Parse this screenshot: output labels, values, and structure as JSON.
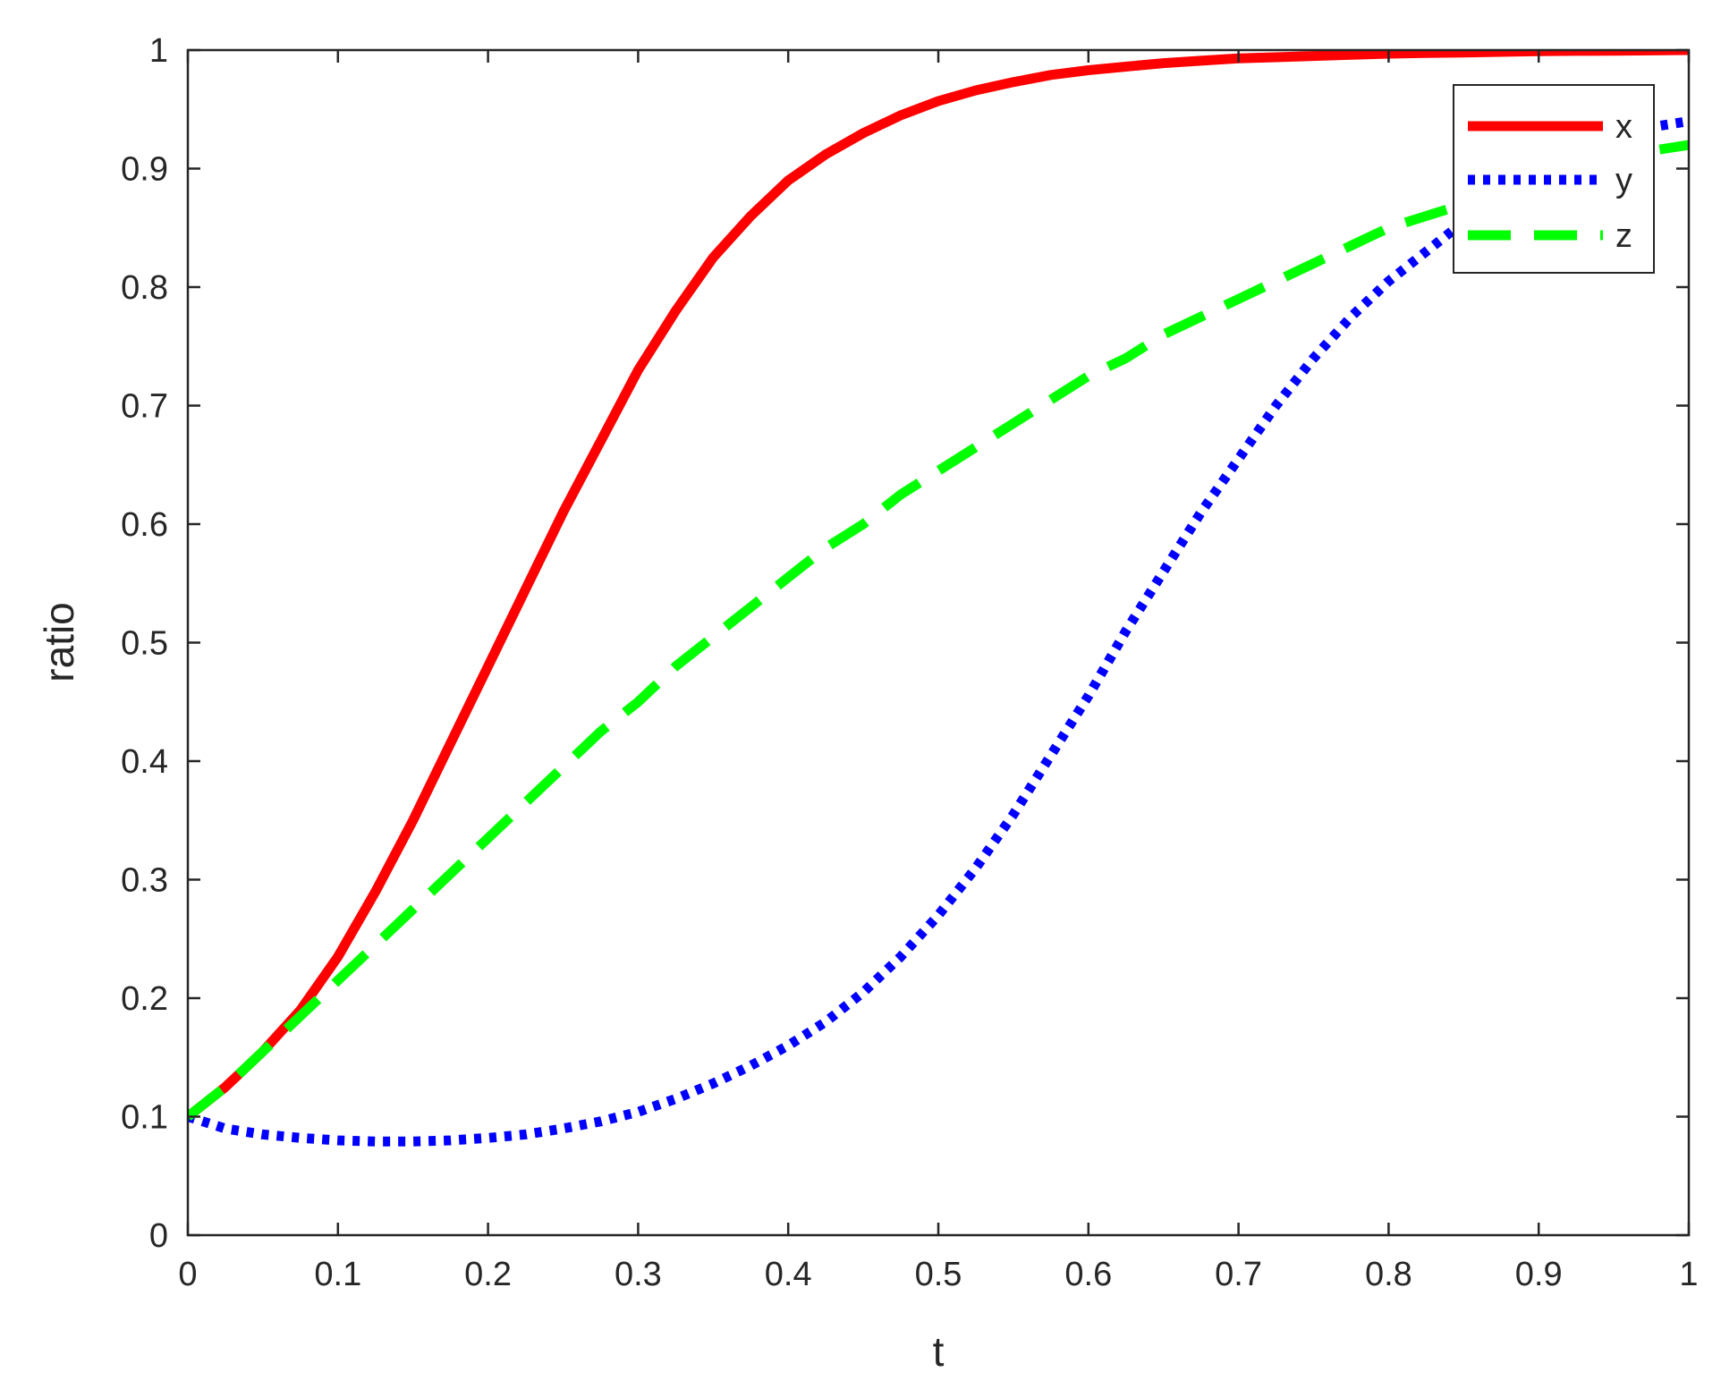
{
  "chart_data": {
    "type": "line",
    "title": "",
    "xlabel": "t",
    "ylabel": "ratio",
    "xlim": [
      0,
      1
    ],
    "ylim": [
      0,
      1
    ],
    "xticks": [
      0,
      0.1,
      0.2,
      0.3,
      0.4,
      0.5,
      0.6,
      0.7,
      0.8,
      0.9,
      1
    ],
    "yticks": [
      0,
      0.1,
      0.2,
      0.3,
      0.4,
      0.5,
      0.6,
      0.7,
      0.8,
      0.9,
      1
    ],
    "xtick_labels": [
      "0",
      "0.1",
      "0.2",
      "0.3",
      "0.4",
      "0.5",
      "0.6",
      "0.7",
      "0.8",
      "0.9",
      "1"
    ],
    "ytick_labels": [
      "0",
      "0.1",
      "0.2",
      "0.3",
      "0.4",
      "0.5",
      "0.6",
      "0.7",
      "0.8",
      "0.9",
      "1"
    ],
    "grid": false,
    "legend_position": "top-right",
    "x": [
      0,
      0.025,
      0.05,
      0.075,
      0.1,
      0.125,
      0.15,
      0.175,
      0.2,
      0.225,
      0.25,
      0.275,
      0.3,
      0.325,
      0.35,
      0.375,
      0.4,
      0.425,
      0.45,
      0.475,
      0.5,
      0.525,
      0.55,
      0.575,
      0.6,
      0.625,
      0.65,
      0.675,
      0.7,
      0.725,
      0.75,
      0.775,
      0.8,
      0.825,
      0.85,
      0.875,
      0.9,
      0.925,
      0.95,
      0.975,
      1
    ],
    "series": [
      {
        "name": "x",
        "color": "#ff0000",
        "style": "solid",
        "values": [
          0.1,
          0.125,
          0.155,
          0.19,
          0.235,
          0.29,
          0.35,
          0.415,
          0.48,
          0.545,
          0.61,
          0.67,
          0.73,
          0.78,
          0.825,
          0.86,
          0.89,
          0.912,
          0.93,
          0.945,
          0.957,
          0.966,
          0.973,
          0.979,
          0.983,
          0.986,
          0.989,
          0.991,
          0.993,
          0.994,
          0.995,
          0.996,
          0.997,
          0.9975,
          0.998,
          0.9985,
          0.999,
          0.9993,
          0.9995,
          0.9997,
          1.0
        ]
      },
      {
        "name": "y",
        "color": "#0000ff",
        "style": "dotted",
        "values": [
          0.1,
          0.09,
          0.085,
          0.082,
          0.08,
          0.079,
          0.079,
          0.08,
          0.082,
          0.085,
          0.09,
          0.096,
          0.104,
          0.115,
          0.128,
          0.143,
          0.16,
          0.18,
          0.205,
          0.235,
          0.27,
          0.31,
          0.355,
          0.405,
          0.455,
          0.51,
          0.56,
          0.61,
          0.655,
          0.7,
          0.74,
          0.775,
          0.805,
          0.83,
          0.855,
          0.875,
          0.895,
          0.91,
          0.925,
          0.935,
          0.94
        ]
      },
      {
        "name": "z",
        "color": "#00ff00",
        "style": "dashed",
        "values": [
          0.1,
          0.125,
          0.155,
          0.185,
          0.215,
          0.245,
          0.275,
          0.305,
          0.335,
          0.365,
          0.395,
          0.425,
          0.45,
          0.48,
          0.505,
          0.53,
          0.555,
          0.58,
          0.6,
          0.625,
          0.645,
          0.665,
          0.685,
          0.705,
          0.725,
          0.74,
          0.76,
          0.775,
          0.79,
          0.805,
          0.82,
          0.835,
          0.85,
          0.86,
          0.87,
          0.88,
          0.89,
          0.9,
          0.905,
          0.915,
          0.92
        ]
      }
    ]
  }
}
